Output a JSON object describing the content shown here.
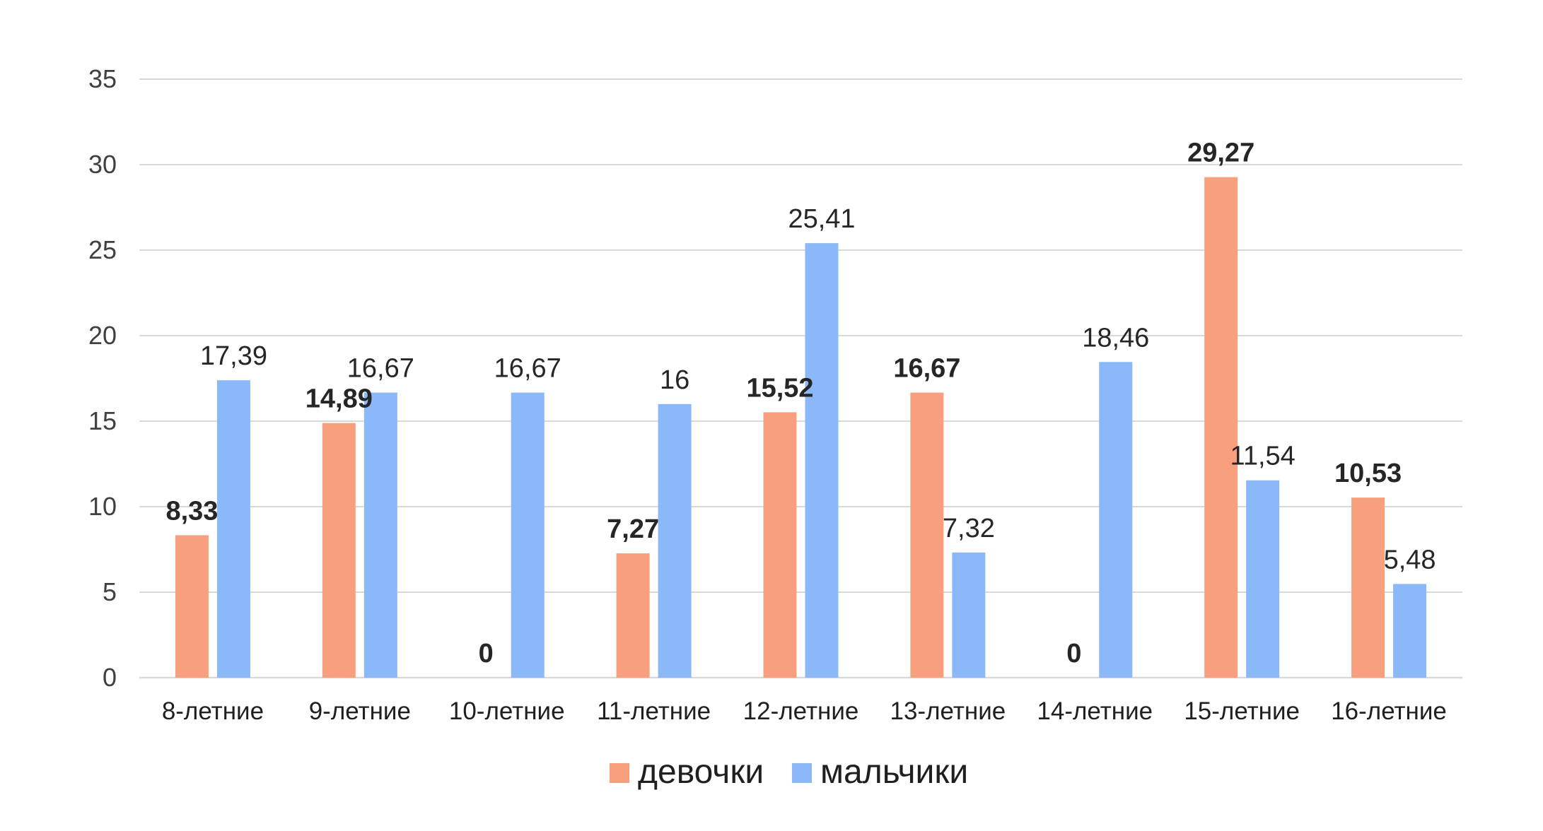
{
  "chart_data": {
    "type": "bar",
    "title": "",
    "xlabel": "",
    "ylabel": "",
    "ylim": [
      0,
      35
    ],
    "yticks": [
      0,
      5,
      10,
      15,
      20,
      25,
      30,
      35
    ],
    "grid": true,
    "legend_position": "bottom",
    "categories": [
      "8-летние",
      "9-летние",
      "10-летние",
      "11-летние",
      "12-летние",
      "13-летние",
      "14-летние",
      "15-летние",
      "16-летние"
    ],
    "series": [
      {
        "name": "девочки",
        "color": "#f8a07e",
        "values": [
          8.33,
          14.89,
          0,
          7.27,
          15.52,
          16.67,
          0,
          29.27,
          10.53
        ],
        "labels": [
          "8,33",
          "14,89",
          "0",
          "7,27",
          "15,52",
          "16,67",
          "0",
          "29,27",
          "10,53"
        ],
        "label_weight": "bold"
      },
      {
        "name": "мальчики",
        "color": "#8ab8f8",
        "values": [
          17.39,
          16.67,
          16.67,
          16,
          25.41,
          7.32,
          18.46,
          11.54,
          5.48
        ],
        "labels": [
          "17,39",
          "16,67",
          "16,67",
          "16",
          "25,41",
          "7,32",
          "18,46",
          "11,54",
          "5,48"
        ],
        "label_weight": "normal"
      }
    ]
  }
}
